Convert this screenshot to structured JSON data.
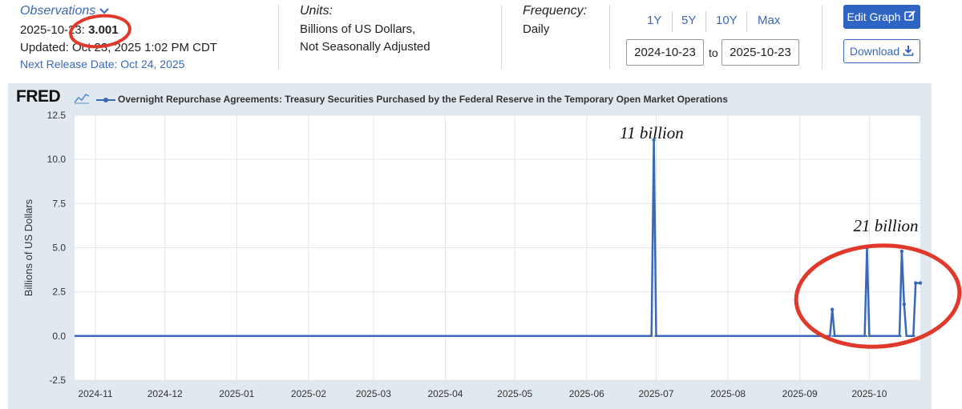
{
  "header": {
    "observations_label": "Observations",
    "obs_date": "2025-10-23:",
    "obs_value": "3.001",
    "updated": "Updated: Oct 23, 2025 1:02 PM CDT",
    "next_release": "Next Release Date: Oct 24, 2025",
    "units_label": "Units:",
    "units_line1": "Billions of US Dollars,",
    "units_line2": "Not Seasonally Adjusted",
    "frequency_label": "Frequency:",
    "frequency_value": "Daily",
    "ranges": [
      "1Y",
      "5Y",
      "10Y",
      "Max"
    ],
    "start_date": "2024-10-23",
    "to_label": "to",
    "end_date": "2025-10-23",
    "edit_graph": "Edit Graph",
    "download": "Download"
  },
  "colors": {
    "series": "#3a68b8",
    "annotation_circle": "#e0392b",
    "plot_bg": "#ffffff",
    "panel_bg": "#e1e9f0"
  },
  "chart_data": {
    "type": "line",
    "title": "Overnight Repurchase Agreements: Treasury Securities Purchased by the Federal Reserve in the Temporary Open Market Operations",
    "logo": "FRED",
    "ylabel": "Billions of US Dollars",
    "xlabel": "",
    "ylim": [
      -2.5,
      12.5
    ],
    "yticks": [
      -2.5,
      0.0,
      2.5,
      5.0,
      7.5,
      10.0,
      12.5
    ],
    "ytick_labels": [
      "-2.5",
      "0.0",
      "2.5",
      "5.0",
      "7.5",
      "10.0",
      "12.5"
    ],
    "xlim": [
      "2024-10-23",
      "2025-10-23"
    ],
    "xticks": [
      "2024-11",
      "2024-12",
      "2025-01",
      "2025-02",
      "2025-03",
      "2025-04",
      "2025-05",
      "2025-06",
      "2025-07",
      "2025-08",
      "2025-09",
      "2025-10"
    ],
    "grid": true,
    "series": [
      {
        "name": "Overnight Repurchase Agreements",
        "baseline": 0.0,
        "points": [
          {
            "date": "2025-06-30",
            "value": 11.1
          },
          {
            "date": "2025-09-15",
            "value": 1.5
          },
          {
            "date": "2025-09-30",
            "value": 5.0
          },
          {
            "date": "2025-10-15",
            "value": 4.8
          },
          {
            "date": "2025-10-16",
            "value": 1.8
          },
          {
            "date": "2025-10-21",
            "value": 3.0
          },
          {
            "date": "2025-10-23",
            "value": 3.001
          }
        ]
      }
    ],
    "annotations": [
      {
        "text": "11 billion"
      },
      {
        "text": "21 billion"
      }
    ]
  }
}
